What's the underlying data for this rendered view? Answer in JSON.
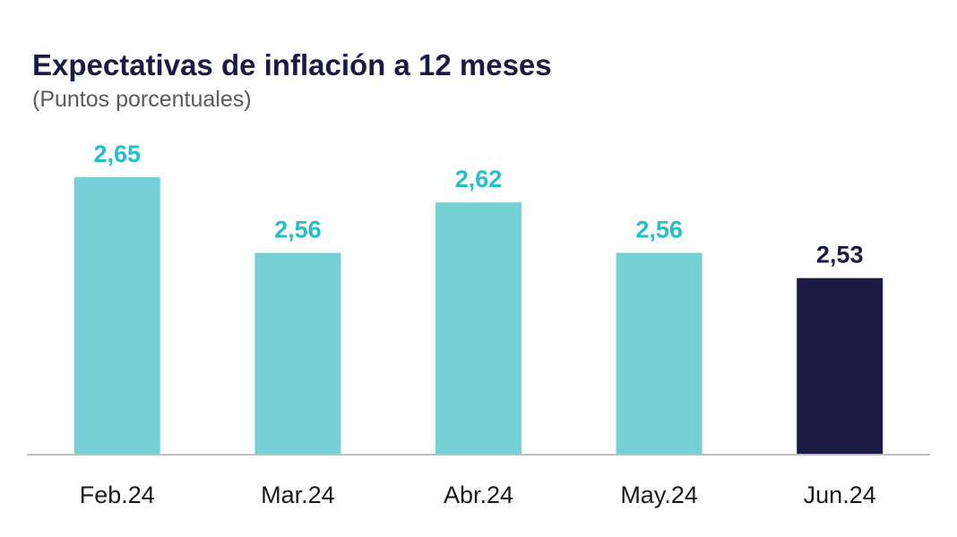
{
  "chart_data": {
    "type": "bar",
    "title": "Expectativas de inflación a 12 meses",
    "subtitle": "(Puntos porcentuales)",
    "categories": [
      "Feb.24",
      "Mar.24",
      "Abr.24",
      "May.24",
      "Jun.24"
    ],
    "values": [
      2.65,
      2.56,
      2.62,
      2.56,
      2.53
    ],
    "value_labels": [
      "2,65",
      "2,56",
      "2,62",
      "2,56",
      "2,53"
    ],
    "colors": [
      "#76d1d6",
      "#76d1d6",
      "#76d1d6",
      "#76d1d6",
      "#1b1a45"
    ],
    "label_colors": [
      "#26bfc9",
      "#26bfc9",
      "#26bfc9",
      "#26bfc9",
      "#1b1a45"
    ],
    "ylim": [
      2.32,
      2.65
    ],
    "xlabel": "",
    "ylabel": "",
    "grid": false,
    "legend": "none"
  }
}
